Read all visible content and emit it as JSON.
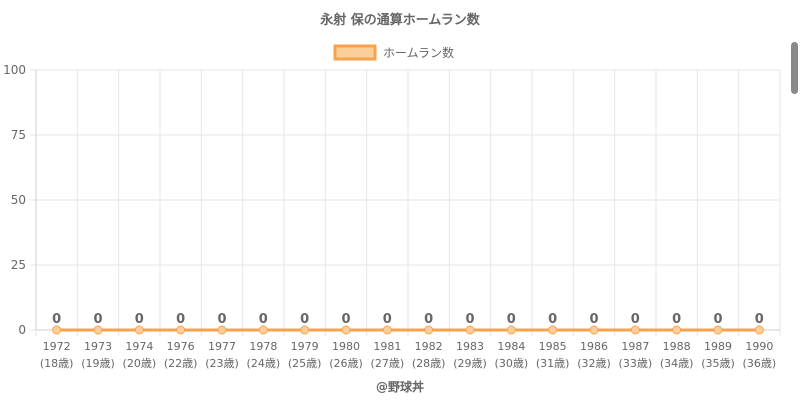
{
  "chart_data": {
    "type": "line",
    "title": "永射 保の通算ホームラン数",
    "legend_position": "top",
    "grid": true,
    "categories": [
      "1972",
      "1973",
      "1974",
      "1976",
      "1977",
      "1978",
      "1979",
      "1980",
      "1981",
      "1982",
      "1983",
      "1984",
      "1985",
      "1986",
      "1987",
      "1988",
      "1989",
      "1990"
    ],
    "category_sublabels": [
      "(18歳)",
      "(19歳)",
      "(20歳)",
      "(22歳)",
      "(23歳)",
      "(24歳)",
      "(25歳)",
      "(26歳)",
      "(27歳)",
      "(28歳)",
      "(29歳)",
      "(30歳)",
      "(31歳)",
      "(32歳)",
      "(33歳)",
      "(34歳)",
      "(35歳)",
      "(36歳)"
    ],
    "series": [
      {
        "name": "ホームラン数",
        "values": [
          0,
          0,
          0,
          0,
          0,
          0,
          0,
          0,
          0,
          0,
          0,
          0,
          0,
          0,
          0,
          0,
          0,
          0
        ],
        "color": "#f7a24d",
        "fill_color": "#fbcf9a"
      }
    ],
    "ylim": [
      0,
      100
    ],
    "yticks": [
      0,
      25,
      50,
      75,
      100
    ],
    "xlabel": "",
    "ylabel": "",
    "footer": "@野球丼"
  }
}
